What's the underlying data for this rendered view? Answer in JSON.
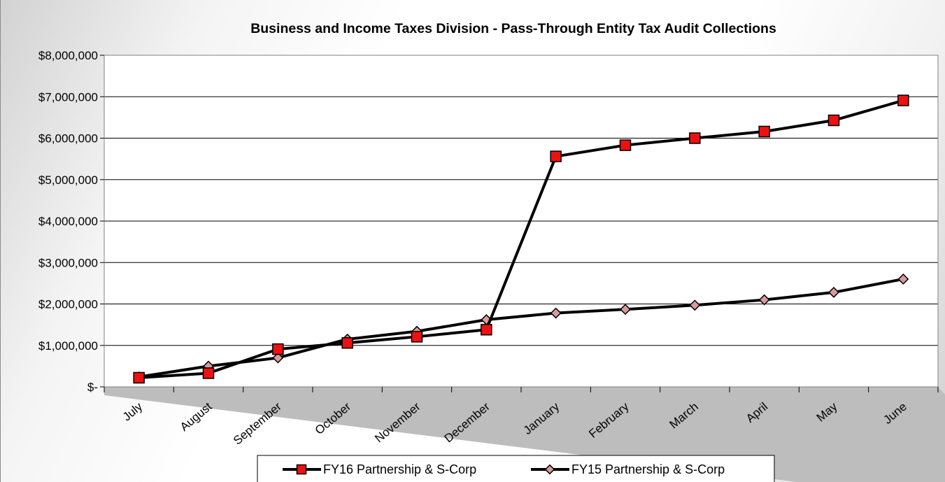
{
  "chart_data": {
    "type": "line",
    "title": "Business and Income Taxes Division - Pass-Through Entity Tax Audit Collections",
    "xlabel": "",
    "ylabel": "",
    "categories": [
      "July",
      "August",
      "September",
      "October",
      "November",
      "December",
      "January",
      "February",
      "March",
      "April",
      "May",
      "June"
    ],
    "ylim": [
      0,
      8000000
    ],
    "yticks": [
      0,
      1000000,
      2000000,
      3000000,
      4000000,
      5000000,
      6000000,
      7000000,
      8000000
    ],
    "ytick_labels": [
      "$-",
      "$1,000,000",
      "$2,000,000",
      "$3,000,000",
      "$4,000,000",
      "$5,000,000",
      "$6,000,000",
      "$7,000,000",
      "$8,000,000"
    ],
    "grid": true,
    "legend_position": "bottom",
    "series": [
      {
        "name": "FY16 Partnership & S-Corp",
        "marker": "square",
        "marker_color": "#ee1111",
        "line_color": "#000000",
        "values": [
          220000,
          330000,
          910000,
          1060000,
          1210000,
          1380000,
          5560000,
          5830000,
          6000000,
          6160000,
          6430000,
          6910000
        ]
      },
      {
        "name": "FY15 Partnership & S-Corp",
        "marker": "diamond",
        "marker_color": "#d99a9a",
        "line_color": "#000000",
        "values": [
          240000,
          500000,
          700000,
          1150000,
          1340000,
          1620000,
          1780000,
          1870000,
          1970000,
          2100000,
          2280000,
          2600000
        ]
      }
    ]
  }
}
